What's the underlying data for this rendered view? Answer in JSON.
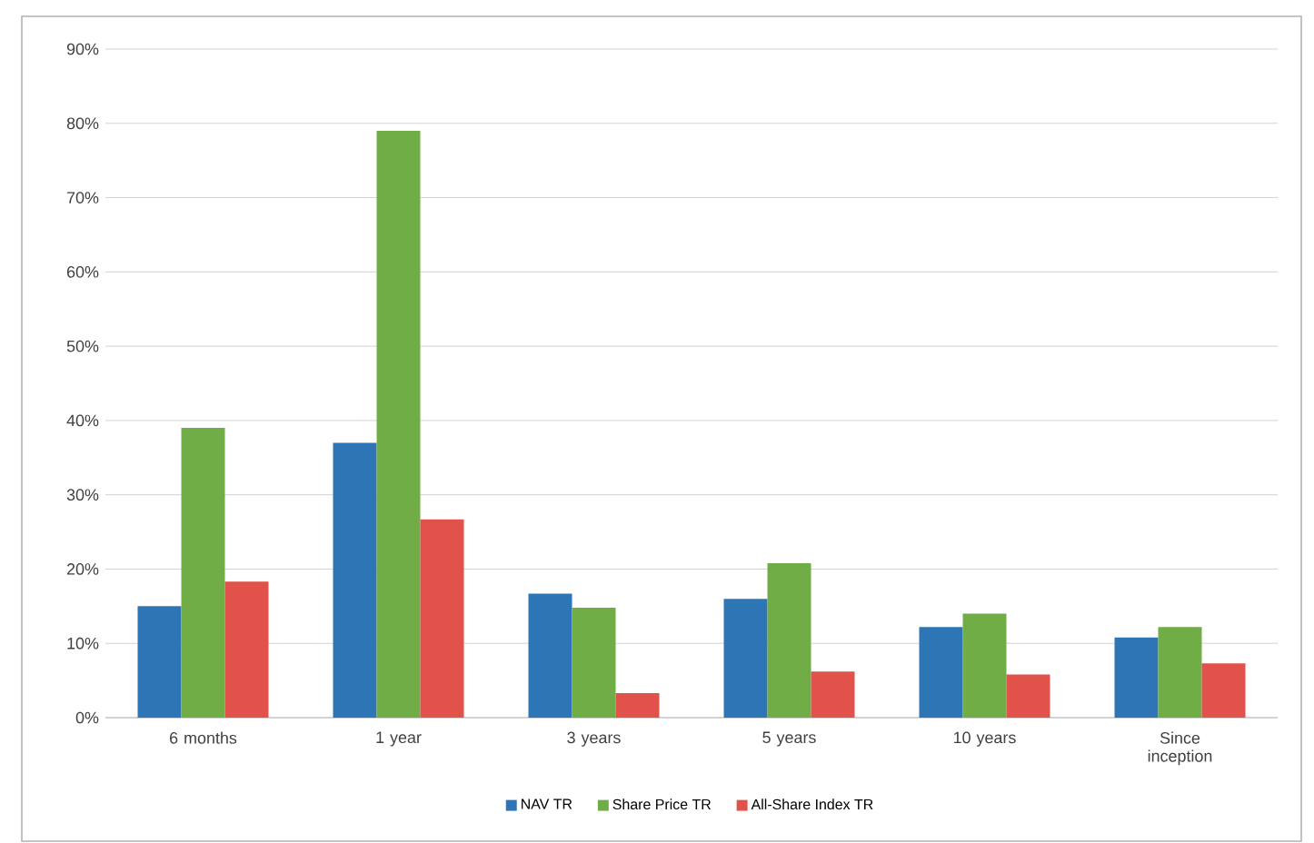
{
  "chart_data": {
    "type": "bar",
    "categories": [
      "6 months",
      "1 year",
      "3 years",
      "5 years",
      "10 years",
      "Since inception"
    ],
    "series": [
      {
        "name": "NAV TR",
        "color": "#2e75b6",
        "values": [
          15,
          37,
          16.7,
          16,
          12.2,
          10.8
        ]
      },
      {
        "name": "Share Price TR",
        "color": "#70ad47",
        "values": [
          39,
          79,
          14.8,
          20.8,
          14,
          12.2
        ]
      },
      {
        "name": "All-Share Index TR",
        "color": "#e0524a",
        "values": [
          18.3,
          26.7,
          3.3,
          6.2,
          5.8,
          7.3
        ]
      }
    ],
    "ylim": [
      0,
      90
    ],
    "yticks": [
      {
        "value": 0,
        "label": "0%"
      },
      {
        "value": 10,
        "label": "10%"
      },
      {
        "value": 20,
        "label": "20%"
      },
      {
        "value": 30,
        "label": "30%"
      },
      {
        "value": 40,
        "label": "40%"
      },
      {
        "value": 50,
        "label": "50%"
      },
      {
        "value": 60,
        "label": "60%"
      },
      {
        "value": 70,
        "label": "70%"
      },
      {
        "value": 80,
        "label": "80%"
      },
      {
        "value": 90,
        "label": "90%"
      }
    ],
    "grid": "y",
    "legend": "bottom"
  }
}
